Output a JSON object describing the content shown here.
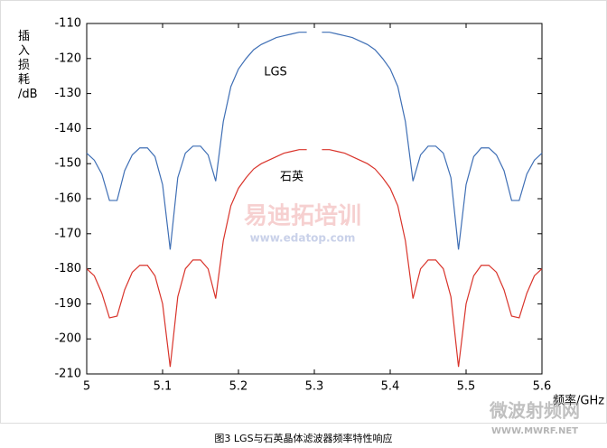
{
  "chart_data": {
    "type": "line",
    "y_label": "插入损耗/dB",
    "x_label": "频率/GHz",
    "caption": "图3 LGS与石英晶体滤波器频率特性响应",
    "annotations": [
      "LGS",
      "石英"
    ],
    "watermarks": [
      "易迪拓培训",
      "www.edatop.com",
      "微波射频网",
      "WWW.MWRF.NET"
    ],
    "xlim": [
      5,
      5.6
    ],
    "xticks": [
      5,
      5.1,
      5.2,
      5.3,
      5.4,
      5.5,
      5.6
    ],
    "ylim": [
      -210,
      -110
    ],
    "yticks": [
      -110,
      -120,
      -130,
      -140,
      -150,
      -160,
      -170,
      -180,
      -190,
      -200,
      -210
    ],
    "grid": false,
    "x": [
      5.0,
      5.01,
      5.02,
      5.03,
      5.04,
      5.05,
      5.06,
      5.07,
      5.08,
      5.09,
      5.1,
      5.11,
      5.12,
      5.13,
      5.14,
      5.15,
      5.16,
      5.17,
      5.18,
      5.19,
      5.2,
      5.21,
      5.22,
      5.23,
      5.24,
      5.25,
      5.26,
      5.27,
      5.28,
      5.29,
      5.3,
      5.31,
      5.32,
      5.33,
      5.34,
      5.35,
      5.36,
      5.37,
      5.38,
      5.39,
      5.4,
      5.41,
      5.42,
      5.43,
      5.44,
      5.45,
      5.46,
      5.47,
      5.48,
      5.49,
      5.5,
      5.51,
      5.52,
      5.53,
      5.54,
      5.55,
      5.56,
      5.57,
      5.58,
      5.59,
      5.6
    ],
    "series": [
      {
        "name": "LGS",
        "color": "#3f6fb5",
        "values": [
          -147,
          -149,
          -153,
          -160.5,
          -160.5,
          -152,
          -147.5,
          -145.5,
          -145.5,
          -148,
          -156,
          -174.5,
          -154,
          -147,
          -145,
          -145,
          -147.5,
          -155,
          -138,
          -128,
          -123,
          -120,
          -117.5,
          -116,
          -115,
          -114,
          -113.5,
          -113,
          -112.5,
          -112.5,
          null,
          -112.5,
          -112.5,
          -113,
          -113.5,
          -114,
          -115,
          -116,
          -117.5,
          -120,
          -123,
          -128,
          -138,
          -155,
          -147.5,
          -145,
          -145,
          -147,
          -154,
          -174.5,
          -156,
          -148,
          -145.5,
          -145.5,
          -147.5,
          -152,
          -160.5,
          -160.5,
          -153,
          -149,
          -147
        ]
      },
      {
        "name": "石英",
        "color": "#d9342b",
        "values": [
          -180,
          -182,
          -187,
          -194,
          -193.5,
          -186,
          -181,
          -179,
          -179,
          -182,
          -190,
          -208,
          -188,
          -180,
          -177.5,
          -177.5,
          -180,
          -188.5,
          -172,
          -162,
          -157,
          -154,
          -151.5,
          -150,
          -149,
          -148,
          -147,
          -146.5,
          -146,
          -146,
          null,
          -146,
          -146,
          -146.5,
          -147,
          -148,
          -149,
          -150,
          -151.5,
          -154,
          -157,
          -162,
          -172,
          -188.5,
          -180,
          -177.5,
          -177.5,
          -180,
          -188,
          -208,
          -190,
          -182,
          -179,
          -179,
          -181,
          -186,
          -193.5,
          -194,
          -187,
          -182,
          -180
        ]
      }
    ]
  }
}
